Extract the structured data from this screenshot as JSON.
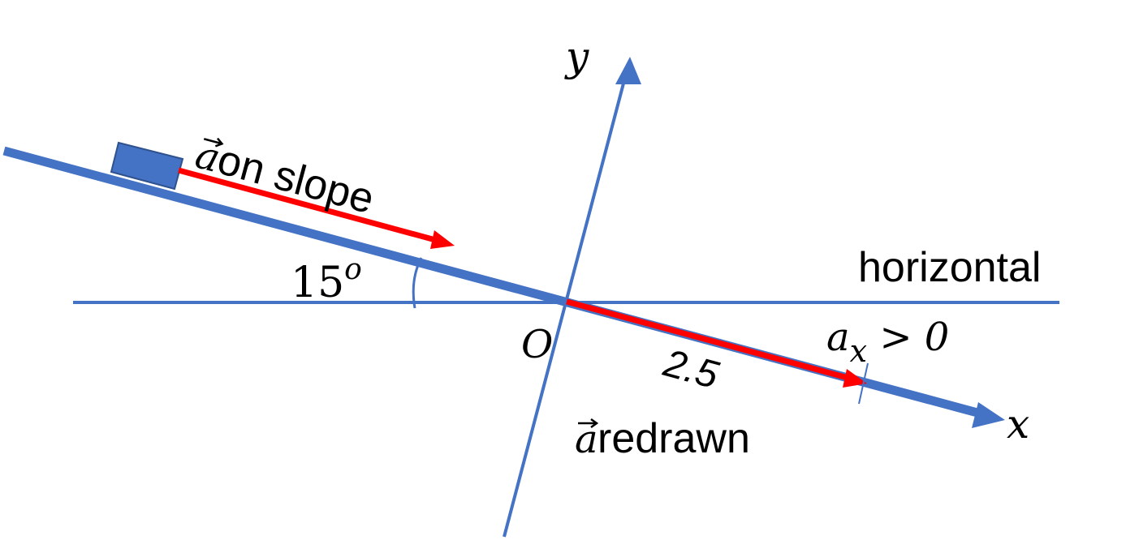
{
  "diagram": {
    "labels": {
      "y_axis": "y",
      "x_axis": "x",
      "origin": "O",
      "horizontal": "horizontal",
      "angle_value": "15",
      "angle_unit": "o",
      "vector_symbol": "a",
      "vector_on_slope": " on slope",
      "vector_redrawn": " redrawn",
      "magnitude": "2.5",
      "component_base": "a",
      "component_sub": "x",
      "component_rest": " > 0"
    },
    "colors": {
      "axis_blue": "#4472C4",
      "vector_red": "#FF0000",
      "block_fill": "#4472C4",
      "block_stroke": "#2F528F"
    }
  }
}
